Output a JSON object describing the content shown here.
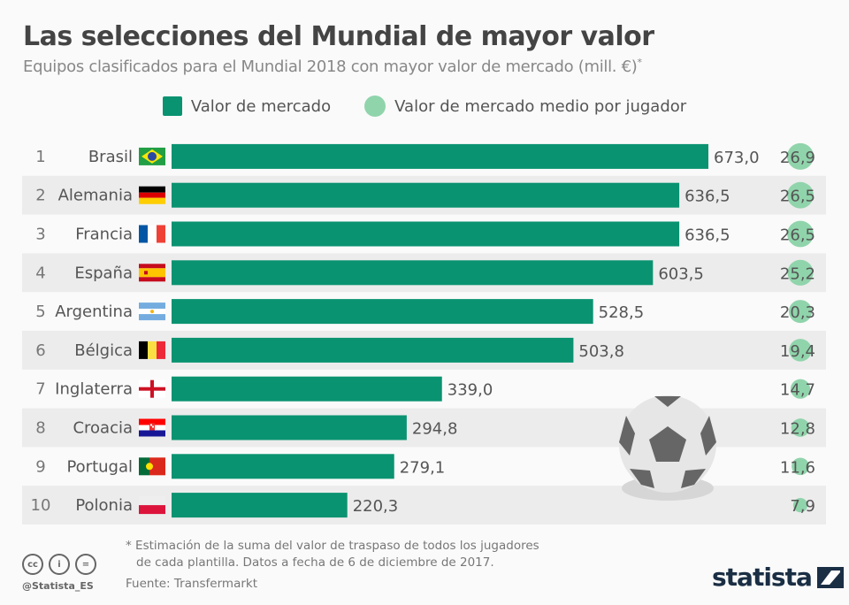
{
  "header": {
    "title": "Las selecciones del Mundial de mayor valor",
    "subtitle": "Equipos clasificados para el Mundial 2018 con mayor valor de mercado (mill. €)",
    "subtitle_mark": "*"
  },
  "legend": {
    "bar_label": "Valor de mercado",
    "dot_label": "Valor de mercado medio por jugador"
  },
  "colors": {
    "bar": "#0a9371",
    "dot": "#90d4ab",
    "stripe": "#ececec"
  },
  "chart_data": {
    "type": "bar",
    "orientation": "horizontal",
    "categories": [
      "Brasil",
      "Alemania",
      "Francia",
      "España",
      "Argentina",
      "Bélgica",
      "Inglaterra",
      "Croacia",
      "Portugal",
      "Polonia"
    ],
    "ranks": [
      "1",
      "2",
      "3",
      "4",
      "5",
      "6",
      "7",
      "8",
      "9",
      "10"
    ],
    "flags": [
      "brazil",
      "germany",
      "france",
      "spain",
      "argentina",
      "belgium",
      "england",
      "croatia",
      "portugal",
      "poland"
    ],
    "series": [
      {
        "name": "Valor de mercado",
        "values": [
          673.0,
          636.5,
          636.5,
          603.5,
          528.5,
          503.8,
          339.0,
          294.8,
          279.1,
          220.3
        ],
        "labels": [
          "673,0",
          "636,5",
          "636,5",
          "603,5",
          "528,5",
          "503,8",
          "339,0",
          "294,8",
          "279,1",
          "220,3"
        ]
      },
      {
        "name": "Valor de mercado medio por jugador",
        "values": [
          26.9,
          26.5,
          26.5,
          25.2,
          20.3,
          19.4,
          14.7,
          12.8,
          11.6,
          7.9
        ],
        "labels": [
          "26,9",
          "26,5",
          "26,5",
          "25,2",
          "20,3",
          "19,4",
          "14,7",
          "12,8",
          "11,6",
          "7,9"
        ]
      }
    ],
    "xlim": [
      0,
      673
    ],
    "grid": false
  },
  "footer": {
    "note_line1": "* Estimación de la suma del valor de traspaso de todos los jugadores",
    "note_line2": "de cada plantilla. Datos a fecha de 6 de diciembre de 2017.",
    "source": "Fuente: Transfermarkt",
    "handle": "@Statista_ES",
    "logo": "statista",
    "cc_icons": [
      "cc",
      "by",
      "nd"
    ]
  }
}
